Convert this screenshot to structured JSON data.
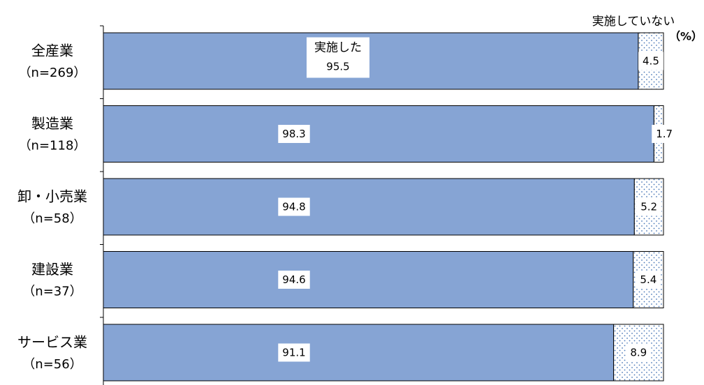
{
  "chart_data": {
    "type": "bar",
    "orientation": "horizontal",
    "stacked": "100%",
    "unit": "（%）",
    "categories": [
      {
        "name": "全産業",
        "n": "（n=269）"
      },
      {
        "name": "製造業",
        "n": "（n=118）"
      },
      {
        "name": "卸・小売業",
        "n": "（n=58）"
      },
      {
        "name": "建設業",
        "n": "（n=37）"
      },
      {
        "name": "サービス業",
        "n": "（n=56）"
      }
    ],
    "series": [
      {
        "name": "実施した",
        "color": "#86a4d4",
        "pattern": "solid",
        "values": [
          95.5,
          98.3,
          94.8,
          94.6,
          91.1
        ],
        "labels": [
          "95.5",
          "98.3",
          "94.8",
          "94.6",
          "91.1"
        ]
      },
      {
        "name": "実施していない",
        "color": "#ffffff",
        "pattern": "dotted",
        "dot_color": "#4a78b8",
        "values": [
          4.5,
          1.7,
          5.2,
          5.4,
          8.9
        ],
        "labels": [
          "4.5",
          "1.7",
          "5.2",
          "5.4",
          "8.9"
        ]
      }
    ],
    "xlim": [
      0,
      100
    ],
    "grid": false,
    "legend": "inline labels (series names drawn at top bar)"
  }
}
